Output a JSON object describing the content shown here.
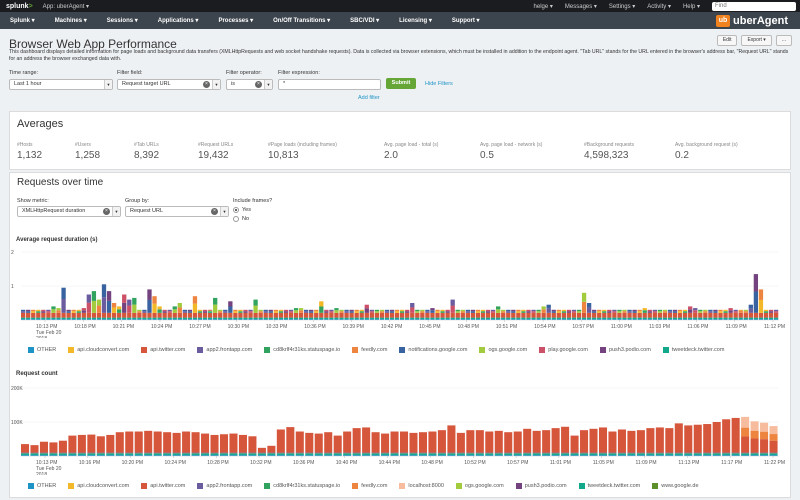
{
  "sysbar": {
    "logo_a": "splunk",
    "logo_b": ">",
    "app_label": "App: uberAgent ▾",
    "user": "helge ▾",
    "messages": "Messages ▾",
    "settings": "Settings ▾",
    "activity": "Activity ▾",
    "help": "Help ▾",
    "find": "Find"
  },
  "nav": {
    "items": [
      "Splunk ▾",
      "Machines ▾",
      "Sessions ▾",
      "Applications ▾",
      "Processes ▾",
      "On/Off Transitions ▾",
      "SBC/VDI ▾",
      "Licensing ▾",
      "Support ▾"
    ],
    "brand_mark": "ub",
    "brand": "uberAgent"
  },
  "header": {
    "title": "Browser Web App Performance",
    "edit": "Edit",
    "export": "Export ▾",
    "more": "...",
    "description": "This dashboard displays detailed information for page loads and background data transfers (XMLHttpRequests and web socket handshake requests). Data is collected via browser extensions, which must be installed in addition to the endpoint agent. \"Tab URL\" stands for the URL entered in the browser's address bar, \"Request URL\" stands for an address the browser exchanged data with."
  },
  "filters": {
    "time_label": "Time range:",
    "time_value": "Last 1 hour",
    "field_label": "Filter field:",
    "field_value": "Request target URL",
    "op_label": "Filter operator:",
    "op_value": "is",
    "expr_label": "Filter expression:",
    "expr_value": "*",
    "submit": "Submit",
    "hide": "Hide Filters",
    "add": "Add filter"
  },
  "averages": {
    "title": "Averages",
    "stats": [
      {
        "label": "#Hosts",
        "value": "1,132"
      },
      {
        "label": "#Users",
        "value": "1,258"
      },
      {
        "label": "#Tab URLs",
        "value": "8,392"
      },
      {
        "label": "#Request URLs",
        "value": "19,432"
      },
      {
        "label": "#Page loads (including frames)",
        "value": "10,813"
      },
      {
        "label": "Avg. page load - total (s)",
        "value": "2.0"
      },
      {
        "label": "Avg. page load - network (s)",
        "value": "0.5"
      },
      {
        "label": "#Background requests",
        "value": "4,598,323"
      },
      {
        "label": "Avg. background request (s)",
        "value": "0.2"
      }
    ]
  },
  "requests": {
    "title": "Requests over time",
    "metric_label": "Show metric:",
    "metric_value": "XMLHttpRequest duration",
    "group_label": "Group by:",
    "group_value": "Request URL",
    "frames_label": "Include frames?",
    "yes": "Yes",
    "no": "No"
  },
  "colors": {
    "other": "#1e93c6",
    "apicloud": "#f2b827",
    "twitter": "#d6563c",
    "frontapp": "#6a5c9e",
    "statuspage": "#31a35f",
    "feedly": "#ed8440",
    "notifications": "#3863a0",
    "ogs": "#a2cc3e",
    "play": "#cc5068",
    "push3": "#73427f",
    "tweetdeck": "#11a88b",
    "localhost": "#f7bc9d",
    "googlede": "#5a8f2a"
  },
  "chart_data": [
    {
      "type": "bar",
      "title": "Average request duration (s)",
      "ylim": [
        0,
        2
      ],
      "yticks": [
        "2",
        "1"
      ],
      "stacked": true,
      "x_ticks": [
        "10:13 PM\nTue Feb 20\n2018",
        "10:18 PM",
        "10:21 PM",
        "10:24 PM",
        "10:27 PM",
        "10:30 PM",
        "10:33 PM",
        "10:36 PM",
        "10:39 PM",
        "10:42 PM",
        "10:45 PM",
        "10:48 PM",
        "10:51 PM",
        "10:54 PM",
        "10:57 PM",
        "11:00 PM",
        "11:03 PM",
        "11:06 PM",
        "11:09 PM",
        "11:12 PM"
      ],
      "legend": [
        {
          "name": "OTHER",
          "key": "other"
        },
        {
          "name": "api.cloudconvert.com",
          "key": "apicloud"
        },
        {
          "name": "api.twitter.com",
          "key": "twitter"
        },
        {
          "name": "app2.frontapp.com",
          "key": "frontapp"
        },
        {
          "name": "cd8krlf4r31ks.statuspage.io",
          "key": "statuspage"
        },
        {
          "name": "feedly.com",
          "key": "feedly"
        },
        {
          "name": "notifications.google.com",
          "key": "notifications"
        },
        {
          "name": "ogs.google.com",
          "key": "ogs"
        },
        {
          "name": "play.google.com",
          "key": "play"
        },
        {
          "name": "push3.podio.com",
          "key": "push3"
        },
        {
          "name": "tweetdeck.twitter.com",
          "key": "tweetdeck"
        }
      ],
      "totals": [
        0.3,
        0.3,
        0.3,
        0.3,
        0.3,
        0.3,
        0.4,
        0.35,
        0.95,
        0.3,
        0.3,
        0.3,
        0.35,
        0.75,
        0.85,
        0.6,
        1.05,
        0.85,
        0.5,
        0.4,
        0.75,
        0.6,
        0.65,
        0.3,
        0.3,
        0.9,
        0.7,
        0.4,
        0.3,
        0.3,
        0.4,
        0.5,
        0.3,
        0.3,
        0.7,
        0.3,
        0.3,
        0.3,
        0.65,
        0.3,
        0.3,
        0.55,
        0.3,
        0.3,
        0.3,
        0.3,
        0.6,
        0.3,
        0.3,
        0.3,
        0.3,
        0.3,
        0.3,
        0.3,
        0.35,
        0.35,
        0.3,
        0.3,
        0.3,
        0.55,
        0.3,
        0.3,
        0.35,
        0.3,
        0.3,
        0.3,
        0.3,
        0.3,
        0.45,
        0.3,
        0.3,
        0.3,
        0.3,
        0.3,
        0.3,
        0.3,
        0.3,
        0.5,
        0.3,
        0.3,
        0.3,
        0.35,
        0.3,
        0.3,
        0.3,
        0.6,
        0.3,
        0.3,
        0.3,
        0.3,
        0.3,
        0.3,
        0.3,
        0.3,
        0.4,
        0.3,
        0.3,
        0.3,
        0.3,
        0.3,
        0.3,
        0.3,
        0.3,
        0.4,
        0.45,
        0.3,
        0.3,
        0.3,
        0.3,
        0.3,
        0.3,
        0.8,
        0.5,
        0.3,
        0.3,
        0.3,
        0.3,
        0.3,
        0.3,
        0.3,
        0.3,
        0.3,
        0.3,
        0.35,
        0.3,
        0.3,
        0.3,
        0.3,
        0.3,
        0.3,
        0.3,
        0.3,
        0.4,
        0.35,
        0.3,
        0.3,
        0.3,
        0.3,
        0.3,
        0.3,
        0.35,
        0.3,
        0.3,
        0.3,
        0.45,
        1.35,
        0.9,
        0.3,
        0.3,
        0.3
      ]
    },
    {
      "type": "bar",
      "title": "Request count",
      "ylim": [
        0,
        200000
      ],
      "yticks": [
        "200K",
        "100K"
      ],
      "stacked": true,
      "x_ticks": [
        "10:13 PM\nTue Feb 20\n2018",
        "10:16 PM",
        "10:20 PM",
        "10:24 PM",
        "10:28 PM",
        "10:32 PM",
        "10:36 PM",
        "10:40 PM",
        "10:44 PM",
        "10:48 PM",
        "10:52 PM",
        "10:57 PM",
        "11:01 PM",
        "11:05 PM",
        "11:09 PM",
        "11:13 PM",
        "11:17 PM",
        "11:22 PM"
      ],
      "legend": [
        {
          "name": "OTHER",
          "key": "other"
        },
        {
          "name": "api.cloudconvert.com",
          "key": "apicloud"
        },
        {
          "name": "api.twitter.com",
          "key": "twitter"
        },
        {
          "name": "app2.frontapp.com",
          "key": "frontapp"
        },
        {
          "name": "cd8krlf4r31ks.statuspage.io",
          "key": "statuspage"
        },
        {
          "name": "feedly.com",
          "key": "feedly"
        },
        {
          "name": "localhost:8000",
          "key": "localhost"
        },
        {
          "name": "ogs.google.com",
          "key": "ogs"
        },
        {
          "name": "push3.podio.com",
          "key": "push3"
        },
        {
          "name": "tweetdeck.twitter.com",
          "key": "tweetdeck"
        },
        {
          "name": "www.google.de",
          "key": "googlede"
        }
      ],
      "totals": [
        35000,
        32000,
        42000,
        40000,
        45000,
        60000,
        62000,
        63000,
        58000,
        62000,
        70000,
        72000,
        72000,
        74000,
        72000,
        70000,
        68000,
        72000,
        70000,
        66000,
        62000,
        64000,
        66000,
        62000,
        58000,
        24000,
        30000,
        78000,
        85000,
        72000,
        68000,
        66000,
        70000,
        60000,
        72000,
        82000,
        84000,
        70000,
        66000,
        72000,
        72000,
        68000,
        70000,
        72000,
        76000,
        90000,
        68000,
        76000,
        76000,
        72000,
        74000,
        70000,
        72000,
        80000,
        74000,
        76000,
        82000,
        86000,
        60000,
        76000,
        80000,
        84000,
        72000,
        78000,
        74000,
        76000,
        82000,
        84000,
        82000,
        96000,
        90000,
        92000,
        94000,
        100000,
        108000,
        112000,
        115000,
        102000,
        98000,
        88000
      ]
    }
  ]
}
